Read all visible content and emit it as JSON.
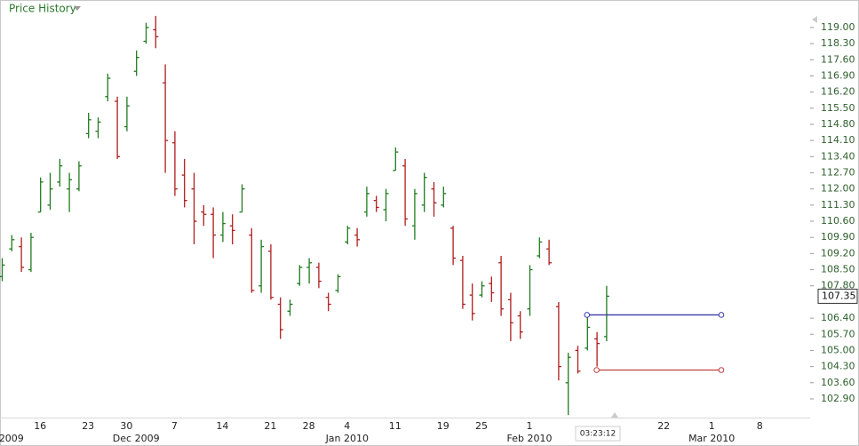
{
  "chart_data": {
    "type": "ohlc",
    "title": "Price History",
    "timestamp": "03:23:12",
    "up_color": "#1f7a1f",
    "down_color": "#b01c1c",
    "categories": [
      null,
      null,
      null,
      null,
      "16",
      null,
      null,
      null,
      null,
      "23",
      null,
      null,
      null,
      "30",
      null,
      null,
      null,
      null,
      "7",
      null,
      null,
      null,
      null,
      "14",
      null,
      null,
      null,
      null,
      "21",
      null,
      null,
      null,
      "28",
      null,
      null,
      null,
      "4",
      null,
      null,
      null,
      null,
      "11",
      null,
      null,
      null,
      null,
      "19",
      null,
      null,
      null,
      "25",
      null,
      null,
      null,
      null,
      "1",
      null,
      null,
      null,
      null,
      null,
      null,
      null,
      null,
      null,
      null,
      null,
      null,
      null,
      "22",
      null,
      null,
      null,
      null,
      "1",
      null,
      null,
      null,
      null,
      "8"
    ],
    "month_labels": [
      null,
      "2009",
      null,
      null,
      null,
      null,
      null,
      null,
      null,
      null,
      null,
      null,
      null,
      null,
      "Dec 2009",
      null,
      null,
      null,
      null,
      null,
      null,
      null,
      null,
      null,
      null,
      null,
      null,
      null,
      null,
      null,
      null,
      null,
      null,
      null,
      null,
      null,
      "Jan 2010",
      null,
      null,
      null,
      null,
      null,
      null,
      null,
      null,
      null,
      null,
      null,
      null,
      null,
      null,
      null,
      null,
      null,
      null,
      "Feb 2010",
      null,
      null,
      null,
      null,
      null,
      null,
      null,
      null,
      null,
      null,
      null,
      null,
      null,
      null,
      null,
      null,
      null,
      null,
      "Mar 2010",
      null,
      null,
      null,
      null,
      null
    ],
    "open": [
      108.2,
      109.4,
      109.5,
      108.5,
      111.0,
      111.3,
      112.3,
      112.0,
      112.0,
      114.4,
      114.5,
      116.0,
      115.8,
      114.7,
      117.1,
      118.4,
      118.9,
      116.6,
      114.0,
      112.6,
      112.0,
      111.0,
      110.9,
      110.0,
      110.4,
      111.0,
      110.0,
      107.8,
      109.3,
      107.0,
      106.7,
      107.9,
      108.6,
      108.6,
      107.3,
      107.6,
      109.7,
      110.0,
      111.0,
      111.5,
      111.1,
      112.8,
      113.0,
      110.4,
      111.3,
      112.0,
      111.3,
      110.3,
      108.9,
      107.4,
      107.4,
      107.9,
      108.8,
      107.2,
      106.5,
      106.8,
      109.1,
      109.4,
      106.9,
      103.6,
      105.0,
      105.1,
      105.5,
      105.6,
      null,
      null,
      null,
      null,
      null,
      null,
      null,
      null,
      null,
      null,
      null,
      null,
      null,
      null,
      null,
      null
    ],
    "high": [
      109.0,
      110.0,
      109.9,
      110.1,
      112.5,
      112.7,
      113.3,
      112.7,
      113.2,
      115.3,
      115.1,
      117.0,
      116.0,
      116.0,
      118.0,
      119.2,
      119.5,
      117.4,
      114.5,
      113.3,
      112.7,
      111.3,
      111.2,
      111.0,
      110.9,
      112.2,
      110.3,
      109.8,
      109.6,
      107.3,
      107.2,
      108.7,
      109.0,
      108.8,
      107.5,
      108.3,
      110.4,
      110.3,
      112.1,
      111.7,
      112.0,
      113.8,
      113.3,
      112.0,
      112.7,
      112.3,
      112.1,
      110.4,
      109.1,
      107.9,
      108.0,
      108.2,
      109.1,
      107.5,
      106.7,
      108.7,
      109.9,
      109.8,
      107.1,
      104.9,
      105.2,
      106.5,
      105.8,
      107.8,
      null,
      null,
      null,
      null,
      null,
      null,
      null,
      null,
      null,
      null,
      null,
      null,
      null,
      null,
      null,
      null
    ],
    "low": [
      108.0,
      109.3,
      108.4,
      108.4,
      111.0,
      111.1,
      112.1,
      111.0,
      111.9,
      114.2,
      114.2,
      115.8,
      113.3,
      114.5,
      116.9,
      118.3,
      118.1,
      112.7,
      111.7,
      111.2,
      109.6,
      110.4,
      109.0,
      109.7,
      109.6,
      111.0,
      107.5,
      107.5,
      107.2,
      105.5,
      106.5,
      107.8,
      107.9,
      107.7,
      106.7,
      107.5,
      109.6,
      109.5,
      110.8,
      111.0,
      110.6,
      112.8,
      110.4,
      109.8,
      111.0,
      110.8,
      111.2,
      108.7,
      106.8,
      106.3,
      107.3,
      107.1,
      106.5,
      105.4,
      105.5,
      106.5,
      109.0,
      108.7,
      103.7,
      102.2,
      104.0,
      105.0,
      104.3,
      105.4,
      null,
      null,
      null,
      null,
      null,
      null,
      null,
      null,
      null,
      null,
      null,
      null,
      null,
      null,
      null,
      null
    ],
    "close": [
      108.7,
      109.8,
      108.6,
      109.9,
      112.3,
      112.0,
      113.0,
      112.4,
      113.0,
      115.0,
      114.9,
      116.8,
      113.4,
      115.6,
      117.7,
      119.0,
      118.6,
      114.1,
      112.0,
      111.5,
      110.6,
      110.9,
      110.0,
      110.5,
      110.2,
      112.0,
      107.6,
      109.5,
      107.3,
      105.9,
      107.0,
      108.6,
      108.8,
      108.0,
      107.0,
      108.2,
      110.3,
      109.8,
      111.8,
      111.2,
      111.8,
      113.6,
      110.7,
      111.8,
      112.5,
      111.4,
      111.8,
      109.0,
      107.0,
      106.6,
      107.8,
      107.5,
      106.8,
      106.2,
      105.8,
      108.5,
      109.7,
      108.8,
      104.3,
      104.7,
      104.1,
      106.0,
      105.3,
      107.35,
      null,
      null,
      null,
      null,
      null,
      null,
      null,
      null,
      null,
      null,
      null,
      null,
      null,
      null,
      null,
      null
    ],
    "last_price": 107.35,
    "trend_lines": [
      {
        "color": "#3a3aa8",
        "value": 106.54,
        "start": 61,
        "end": 75
      },
      {
        "color": "#c04040",
        "value": 104.15,
        "start": 62,
        "end": 75
      }
    ],
    "ylim": [
      102.09,
      120.19
    ],
    "yticks": [
      {
        "value": 102.9,
        "label": "102.90"
      },
      {
        "value": 103.6,
        "label": "103.60"
      },
      {
        "value": 104.3,
        "label": "104.30"
      },
      {
        "value": 105.0,
        "label": "105.00"
      },
      {
        "value": 105.7,
        "label": "105.70"
      },
      {
        "value": 106.4,
        "label": "106.40"
      },
      {
        "value": 107.8,
        "label": "107.80"
      },
      {
        "value": 108.5,
        "label": "108.50"
      },
      {
        "value": 109.2,
        "label": "109.20"
      },
      {
        "value": 109.9,
        "label": "109.90"
      },
      {
        "value": 110.6,
        "label": "110.60"
      },
      {
        "value": 111.3,
        "label": "111.30"
      },
      {
        "value": 112.0,
        "label": "112.00"
      },
      {
        "value": 112.7,
        "label": "112.70"
      },
      {
        "value": 113.4,
        "label": "113.40"
      },
      {
        "value": 114.1,
        "label": "114.10"
      },
      {
        "value": 114.8,
        "label": "114.80"
      },
      {
        "value": 115.5,
        "label": "115.50"
      },
      {
        "value": 116.2,
        "label": "116.20"
      },
      {
        "value": 116.9,
        "label": "116.90"
      },
      {
        "value": 117.6,
        "label": "117.60"
      },
      {
        "value": 118.3,
        "label": "118.30"
      },
      {
        "value": 119.0,
        "label": "119.00"
      }
    ]
  }
}
